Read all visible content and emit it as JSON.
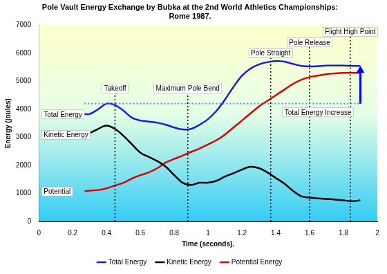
{
  "chart_data": {
    "type": "line",
    "title": [
      "Pole Vault Energy Exchange by Bubka at the 2nd World Athletics Championships:",
      "Rome 1987."
    ],
    "x_label": "Time (seconds).",
    "y_label": "Energy (joules)",
    "x": [
      0.27,
      0.3,
      0.35,
      0.4,
      0.45,
      0.5,
      0.55,
      0.6,
      0.65,
      0.7,
      0.75,
      0.8,
      0.85,
      0.9,
      0.95,
      1.0,
      1.05,
      1.1,
      1.15,
      1.2,
      1.25,
      1.3,
      1.35,
      1.4,
      1.45,
      1.5,
      1.55,
      1.6,
      1.65,
      1.7,
      1.75,
      1.8,
      1.85,
      1.9
    ],
    "series": [
      {
        "name": "Total Energy",
        "label": "Total Energy",
        "color": "#1a1ae6",
        "values": [
          3830,
          3830,
          4000,
          4200,
          4150,
          3950,
          3700,
          3600,
          3560,
          3520,
          3450,
          3350,
          3280,
          3300,
          3450,
          3650,
          3950,
          4350,
          4800,
          5200,
          5450,
          5600,
          5680,
          5720,
          5700,
          5620,
          5550,
          5530,
          5540,
          5560,
          5560,
          5560,
          5550,
          5550
        ]
      },
      {
        "name": "Kinetic Energy",
        "label": "Kinetic Energy",
        "color": "#000000",
        "values": [
          3100,
          3150,
          3300,
          3420,
          3300,
          3050,
          2750,
          2450,
          2300,
          2150,
          1950,
          1650,
          1380,
          1300,
          1380,
          1380,
          1450,
          1600,
          1720,
          1850,
          1950,
          1900,
          1750,
          1550,
          1350,
          1100,
          900,
          850,
          820,
          800,
          780,
          750,
          720,
          750
        ]
      },
      {
        "name": "Potential Energy",
        "label": "Potential",
        "color": "#e00000",
        "values": [
          1080,
          1100,
          1120,
          1180,
          1280,
          1380,
          1530,
          1650,
          1750,
          1900,
          2100,
          2230,
          2350,
          2480,
          2600,
          2750,
          2900,
          3100,
          3350,
          3600,
          3850,
          4100,
          4300,
          4500,
          4700,
          4900,
          5050,
          5150,
          5200,
          5250,
          5280,
          5300,
          5300,
          5300
        ]
      }
    ],
    "xlim": [
      0,
      2
    ],
    "xticks": [
      0,
      0.2,
      0.4,
      0.6,
      0.8,
      1,
      1.2,
      1.4,
      1.6,
      1.8,
      2
    ],
    "ylim": [
      0,
      7000
    ],
    "yticks": [
      0,
      1000,
      2000,
      3000,
      4000,
      5000,
      6000,
      7000
    ],
    "grid": false,
    "legend": "bottom",
    "events": [
      {
        "label": "Takeoff",
        "x": 0.45
      },
      {
        "label": "Maximum Pole Bend",
        "x": 0.88
      },
      {
        "label": "Pole Straight",
        "x": 1.37
      },
      {
        "label": "Pole Release",
        "x": 1.6
      },
      {
        "label": "Flight High Point",
        "x": 1.84
      }
    ],
    "total_energy_increase": {
      "label": "Total Energy Increase",
      "x": [
        0.27,
        1.9
      ],
      "y": [
        4200,
        5550
      ]
    }
  }
}
